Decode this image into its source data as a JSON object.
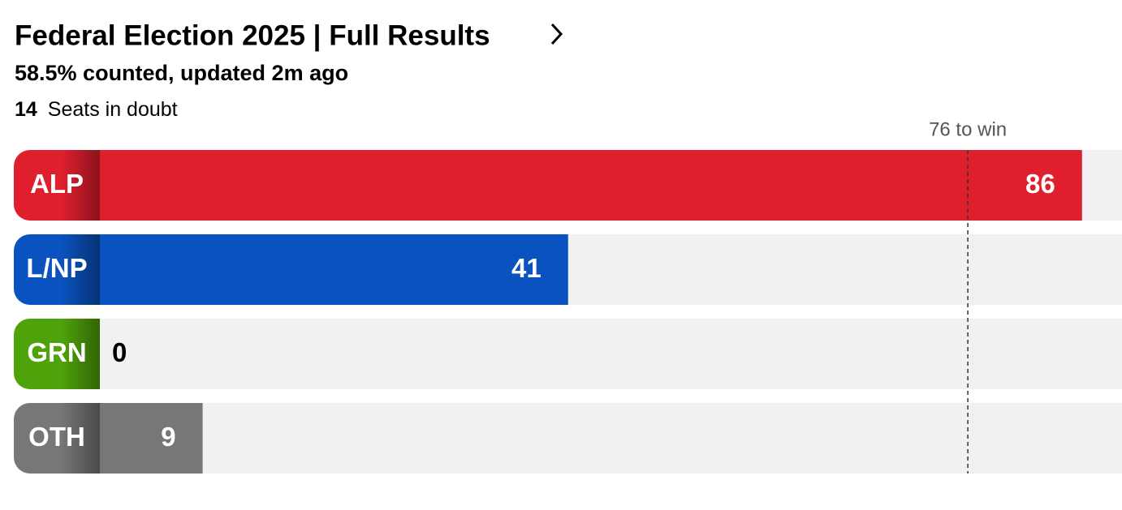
{
  "chart_data": {
    "type": "bar",
    "orientation": "horizontal",
    "title": "Federal Election 2025 | Full Results",
    "subtitle": "58.5% counted, updated 2m ago",
    "seats_in_doubt": 14,
    "seats_in_doubt_label": "Seats in doubt",
    "categories": [
      "ALP",
      "L/NP",
      "GRN",
      "OTH"
    ],
    "values": [
      86,
      41,
      0,
      9
    ],
    "colors": [
      "#e01f2e",
      "#0a52bf",
      "#4fa30a",
      "#777777"
    ],
    "xlim": [
      0,
      89.5
    ],
    "threshold": {
      "value": 76,
      "label": "76 to win"
    }
  }
}
